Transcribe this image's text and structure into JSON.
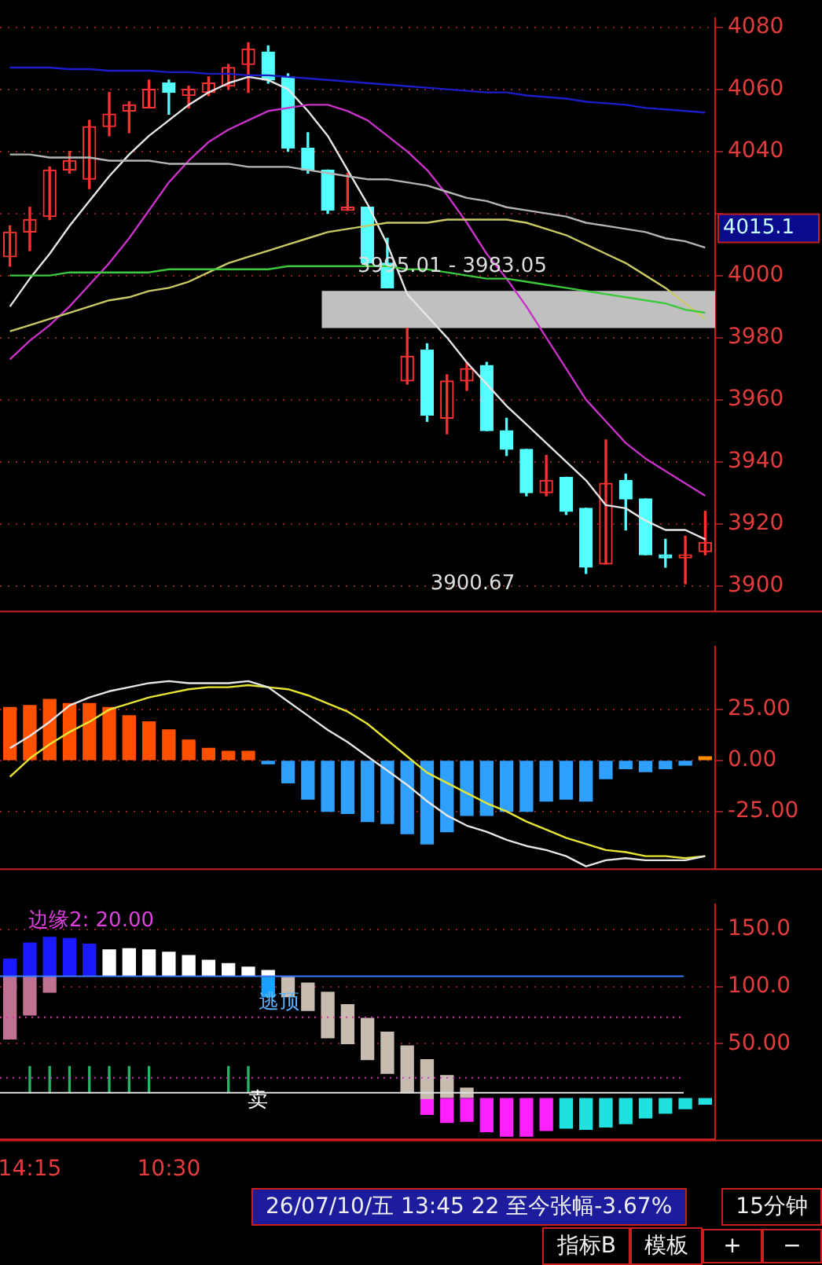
{
  "chart_data": [
    {
      "type": "candlestick",
      "categories": [
        null,
        null,
        null,
        null,
        null,
        null,
        null,
        null,
        null,
        null,
        null,
        null,
        null,
        null,
        null,
        null,
        null,
        null,
        null,
        null,
        null,
        null,
        null,
        null,
        null,
        null,
        null,
        null,
        null,
        null,
        null,
        null,
        null,
        null,
        null,
        null
      ],
      "ohlc": [
        [
          4006,
          4016,
          4003,
          4014
        ],
        [
          4014,
          4022,
          4008,
          4018
        ],
        [
          4019,
          4035,
          4018,
          4034
        ],
        [
          4034,
          4040,
          4033,
          4037
        ],
        [
          4031,
          4050,
          4028,
          4048
        ],
        [
          4048,
          4059,
          4045,
          4052
        ],
        [
          4053,
          4056,
          4046,
          4055
        ],
        [
          4054,
          4063,
          4054,
          4060
        ],
        [
          4062,
          4063,
          4052,
          4059
        ],
        [
          4058,
          4061,
          4054,
          4060
        ],
        [
          4059,
          4064,
          4058,
          4062
        ],
        [
          4061,
          4068,
          4060,
          4067
        ],
        [
          4068,
          4075,
          4059,
          4073
        ],
        [
          4072,
          4074,
          4062,
          4063
        ],
        [
          4064,
          4065,
          4040,
          4041
        ],
        [
          4041,
          4046,
          4033,
          4034
        ],
        [
          4034,
          4034,
          4020,
          4021
        ],
        [
          4021,
          4033,
          4021,
          4022
        ],
        [
          4022,
          4022,
          4003,
          4004
        ],
        [
          4004,
          4012,
          3996,
          3996
        ],
        [
          3966,
          3983,
          3965,
          3974
        ],
        [
          3976,
          3978,
          3953,
          3955
        ],
        [
          3954,
          3968,
          3949,
          3966
        ],
        [
          3966,
          3972,
          3963,
          3970
        ],
        [
          3971,
          3972,
          3950,
          3950
        ],
        [
          3950,
          3954,
          3942,
          3944
        ],
        [
          3944,
          3944,
          3929,
          3930
        ],
        [
          3930,
          3942,
          3929,
          3934
        ],
        [
          3935,
          3935,
          3923,
          3924
        ],
        [
          3925,
          3925,
          3904,
          3906
        ],
        [
          3907,
          3947,
          3907,
          3933
        ],
        [
          3934,
          3936,
          3918,
          3928
        ],
        [
          3928,
          3928,
          3910,
          3910
        ],
        [
          3910,
          3915,
          3906,
          3909
        ],
        [
          3909,
          3916,
          3900.67,
          3910
        ],
        [
          3911,
          3924,
          3910,
          3914
        ]
      ],
      "colors": [
        "#ff3232",
        "#ff3232",
        "#ff3232",
        "#ff3232",
        "#ff3232",
        "#ff3232",
        "#ff3232",
        "#ff3232",
        "#54ffff",
        "#ff3232",
        "#ff3232",
        "#ff3232",
        "#ff3232",
        "#54ffff",
        "#54ffff",
        "#54ffff",
        "#54ffff",
        "#ff3232",
        "#54ffff",
        "#54ffff",
        "#ff3232",
        "#54ffff",
        "#ff3232",
        "#ff3232",
        "#54ffff",
        "#54ffff",
        "#54ffff",
        "#ff3232",
        "#54ffff",
        "#54ffff",
        "#ff3232",
        "#54ffff",
        "#54ffff",
        "#54ffff",
        "#ff3232",
        "#ff3232"
      ],
      "series": [
        {
          "type": "line",
          "color": "#1c1cc8",
          "values": [
            4067,
            4067,
            4067,
            4066.5,
            4066.5,
            4066,
            4066,
            4066,
            4065.5,
            4065.5,
            4065,
            4065,
            4064.5,
            4064.5,
            4064,
            4063.5,
            4063,
            4062.5,
            4062,
            4061.5,
            4061,
            4060.5,
            4060,
            4059.5,
            4059,
            4059,
            4058,
            4057.5,
            4057,
            4056,
            4055.5,
            4055,
            4054,
            4053.5,
            4053,
            4052.5
          ]
        },
        {
          "type": "line",
          "color": "#b4b4b4",
          "values": [
            4039,
            4039,
            4038,
            4038,
            4038,
            4037,
            4037,
            4037,
            4036,
            4036,
            4036,
            4036,
            4035,
            4035,
            4035,
            4034,
            4033,
            4032,
            4031,
            4031,
            4030,
            4029,
            4027,
            4025,
            4024,
            4022,
            4021,
            4020,
            4019,
            4017,
            4016,
            4015,
            4014,
            4012,
            4011,
            4009
          ]
        },
        {
          "type": "line",
          "color": "#3cc83c",
          "values": [
            4000,
            4000,
            4000,
            4001,
            4001,
            4001,
            4001,
            4001,
            4002,
            4002,
            4002,
            4002,
            4002,
            4002,
            4003,
            4003,
            4003,
            4003,
            4003,
            4003,
            4002,
            4002,
            4001,
            4000,
            3999,
            3999,
            3998,
            3997,
            3996,
            3995,
            3994,
            3993,
            3992,
            3991,
            3989,
            3988
          ]
        },
        {
          "type": "line",
          "color": "#c8c864",
          "values": [
            3982,
            3984,
            3986,
            3988,
            3990,
            3992,
            3993,
            3995,
            3996,
            3998,
            4001,
            4004,
            4006,
            4008,
            4010,
            4012,
            4014,
            4015,
            4016,
            4017,
            4017,
            4017,
            4018,
            4018,
            4018,
            4018,
            4017,
            4015,
            4013,
            4010,
            4007,
            4004,
            4000,
            3996,
            3991,
            3986
          ]
        },
        {
          "type": "line",
          "color": "#c832c8",
          "values": [
            3973,
            3979,
            3984,
            3990,
            3997,
            4004,
            4012,
            4021,
            4030,
            4037,
            4043,
            4047,
            4050,
            4053,
            4054,
            4055,
            4055,
            4053,
            4050,
            4045,
            4040,
            4034,
            4026,
            4017,
            4007,
            3999,
            3990,
            3980,
            3970,
            3960,
            3953,
            3946,
            3941,
            3937,
            3933,
            3929
          ]
        },
        {
          "type": "line",
          "color": "#e6e6e6",
          "values": [
            3990,
            3999,
            4007,
            4016,
            4024,
            4032,
            4039,
            4045,
            4050,
            4055,
            4059,
            4062,
            4064,
            4063,
            4060,
            4053,
            4045,
            4034,
            4023,
            4010,
            3994,
            3987,
            3980,
            3972,
            3965,
            3958,
            3952,
            3946,
            3940,
            3934,
            3926,
            3925,
            3921,
            3918,
            3918,
            3915
          ]
        }
      ],
      "ylim": [
        3892,
        4083
      ],
      "yticks": [
        3900,
        3920,
        3940,
        3960,
        3980,
        4000,
        {
          "value": 4020,
          "label": null
        },
        4040,
        4060,
        4080
      ],
      "grid": "y",
      "tick_labels": "y",
      "legend": false,
      "bands": [
        {
          "axis": "y",
          "from": 3983.05,
          "to": 3995.01,
          "label": "3995.01 - 3983.05",
          "color": "#c0c0c0"
        }
      ],
      "annotations": [
        "4015.1",
        "3900.67"
      ]
    },
    {
      "type": "bar",
      "categories": [
        null,
        null,
        null,
        null,
        null,
        null,
        null,
        null,
        null,
        null,
        null,
        null,
        null,
        null,
        null,
        null,
        null,
        null,
        null,
        null,
        null,
        null,
        null,
        null,
        null,
        null,
        null,
        null,
        null,
        null,
        null,
        null,
        null,
        null,
        null,
        null
      ],
      "series": [
        {
          "type": "bar",
          "values": [
            26,
            27,
            30,
            28,
            28,
            26,
            22,
            19,
            15,
            10,
            6,
            4.5,
            4.5,
            -1.6,
            -11,
            -19,
            -25,
            -26,
            -30,
            -31,
            -36,
            -41,
            -35,
            -27,
            -27,
            -25,
            -25,
            -20,
            -19,
            -20,
            -9,
            -4,
            -5.5,
            -4,
            -2.3,
            1.8
          ],
          "colors": [
            "#ff5000",
            "#ff5000",
            "#ff5000",
            "#ff5000",
            "#ff5000",
            "#ff5000",
            "#ff5000",
            "#ff5000",
            "#ff5000",
            "#ff5000",
            "#ff5000",
            "#ff5000",
            "#ff5000",
            "#30a0ff",
            "#30a0ff",
            "#30a0ff",
            "#30a0ff",
            "#30a0ff",
            "#30a0ff",
            "#30a0ff",
            "#30a0ff",
            "#30a0ff",
            "#30a0ff",
            "#30a0ff",
            "#30a0ff",
            "#30a0ff",
            "#30a0ff",
            "#30a0ff",
            "#30a0ff",
            "#30a0ff",
            "#30a0ff",
            "#30a0ff",
            "#30a0ff",
            "#30a0ff",
            "#30a0ff",
            "#ff8c00"
          ]
        },
        {
          "type": "line",
          "color": "#e6e6e6",
          "values": [
            6,
            12,
            19,
            27,
            31,
            34,
            36,
            38,
            39,
            38,
            38,
            38,
            39,
            36,
            29,
            22,
            15,
            9,
            2,
            -5,
            -12,
            -20,
            -27,
            -32,
            -35,
            -39,
            -42,
            -44,
            -47,
            -52,
            -49,
            -48,
            -49,
            -49,
            -49,
            -47
          ]
        },
        {
          "type": "line",
          "color": "#e6e632",
          "values": [
            -8,
            1,
            8,
            14,
            19,
            25,
            28,
            31,
            33,
            35,
            36,
            36,
            37,
            36,
            35,
            32,
            28,
            24,
            18,
            10,
            2,
            -6,
            -11,
            -16,
            -21,
            -25,
            -30,
            -34,
            -38,
            -41,
            -44,
            -45,
            -47,
            -47,
            -48,
            -47
          ]
        }
      ],
      "ylim": [
        -53,
        56
      ],
      "yticks": [
        {
          "value": 25,
          "label": "25.00"
        },
        {
          "value": 0,
          "label": "0.00"
        },
        {
          "value": -25,
          "label": "-25.00"
        }
      ],
      "grid": "y",
      "tick_labels": "y",
      "legend": false
    },
    {
      "type": "bar",
      "categories": [
        null,
        "14:15",
        null,
        null,
        null,
        null,
        null,
        null,
        "10:30",
        null,
        null,
        null,
        null,
        null,
        null,
        null,
        null,
        null,
        null,
        null,
        null,
        null,
        null,
        null,
        null,
        null,
        null,
        null,
        null,
        null,
        null,
        null,
        null,
        null,
        null,
        null
      ],
      "series": [
        {
          "type": "bar",
          "color": "#1a1aff",
          "base": [
            109,
            109,
            109,
            109,
            109,
            null,
            null,
            null,
            null,
            null,
            null,
            null,
            null,
            null,
            null,
            null,
            null,
            null,
            null,
            null,
            null,
            null,
            null,
            null,
            null,
            null,
            null,
            null,
            null,
            null,
            null,
            null,
            null,
            null,
            null,
            null
          ],
          "values": [
            15,
            29,
            34,
            33,
            28,
            null,
            null,
            null,
            null,
            null,
            null,
            null,
            null,
            null,
            null,
            null,
            null,
            null,
            null,
            null,
            null,
            null,
            null,
            null,
            null,
            null,
            null,
            null,
            null,
            null,
            null,
            null,
            null,
            null,
            null,
            null
          ]
        },
        {
          "type": "bar",
          "color": "#c07090",
          "base": [
            54,
            75,
            95,
            null,
            null,
            null,
            null,
            null,
            null,
            null,
            null,
            null,
            null,
            null,
            null,
            null,
            null,
            null,
            null,
            null,
            null,
            null,
            null,
            null,
            null,
            null,
            null,
            null,
            null,
            null,
            null,
            null,
            null,
            null,
            null,
            null
          ],
          "values": [
            55,
            34,
            14,
            null,
            null,
            null,
            null,
            null,
            null,
            null,
            null,
            null,
            null,
            null,
            null,
            null,
            null,
            null,
            null,
            null,
            null,
            null,
            null,
            null,
            null,
            null,
            null,
            null,
            null,
            null,
            null,
            null,
            null,
            null,
            null,
            null
          ]
        },
        {
          "type": "bar",
          "color": "#ffffff",
          "base": [
            null,
            null,
            null,
            null,
            null,
            109,
            109,
            109,
            109,
            109,
            109,
            109,
            109,
            109,
            null,
            null,
            null,
            null,
            null,
            null,
            null,
            null,
            null,
            null,
            null,
            null,
            null,
            null,
            null,
            null,
            null,
            null,
            null,
            null,
            null,
            null
          ],
          "values": [
            null,
            null,
            null,
            null,
            null,
            23,
            24,
            23,
            21,
            18,
            14,
            11,
            8,
            5,
            null,
            null,
            null,
            null,
            null,
            null,
            null,
            null,
            null,
            null,
            null,
            null,
            null,
            null,
            null,
            null,
            null,
            null,
            null,
            null,
            null,
            null
          ]
        },
        {
          "type": "bar",
          "color": "#1aa0ff",
          "base": [
            null,
            null,
            null,
            null,
            null,
            null,
            null,
            null,
            null,
            null,
            null,
            null,
            null,
            91,
            null,
            null,
            null,
            null,
            null,
            null,
            null,
            null,
            null,
            null,
            null,
            null,
            null,
            null,
            null,
            null,
            null,
            null,
            null,
            null,
            null,
            null
          ],
          "values": [
            null,
            null,
            null,
            null,
            null,
            null,
            null,
            null,
            null,
            null,
            null,
            null,
            null,
            17,
            null,
            null,
            null,
            null,
            null,
            null,
            null,
            null,
            null,
            null,
            null,
            null,
            null,
            null,
            null,
            null,
            null,
            null,
            null,
            null,
            null,
            null
          ]
        },
        {
          "type": "bar",
          "color": "#c8bcb0",
          "base": [
            null,
            null,
            null,
            null,
            null,
            null,
            null,
            null,
            null,
            null,
            null,
            null,
            null,
            null,
            91,
            79,
            55,
            50,
            36,
            24,
            7,
            2,
            3,
            3,
            null,
            null,
            null,
            null,
            null,
            null,
            null,
            null,
            null,
            null,
            null,
            null
          ],
          "values": [
            null,
            null,
            null,
            null,
            null,
            null,
            null,
            null,
            null,
            null,
            null,
            null,
            null,
            null,
            17,
            24,
            40,
            34,
            36,
            36,
            41,
            34,
            19,
            8,
            null,
            null,
            null,
            null,
            null,
            null,
            null,
            null,
            null,
            null,
            null,
            null
          ]
        },
        {
          "type": "bar",
          "color": "#ff20ff",
          "base": [
            null,
            null,
            null,
            null,
            null,
            null,
            null,
            null,
            null,
            null,
            null,
            null,
            null,
            null,
            null,
            null,
            null,
            null,
            null,
            null,
            null,
            -12,
            -19,
            -18,
            -27,
            -31,
            -31,
            -26,
            null,
            null,
            null,
            null,
            null,
            null,
            null,
            null
          ],
          "values": [
            null,
            null,
            null,
            null,
            null,
            null,
            null,
            null,
            null,
            null,
            null,
            null,
            null,
            null,
            null,
            null,
            null,
            null,
            null,
            null,
            null,
            14,
            21,
            20,
            29,
            33,
            33,
            28,
            null,
            null,
            null,
            null,
            null,
            null,
            null,
            null
          ]
        },
        {
          "type": "bar",
          "color": "#20e0e0",
          "base": [
            null,
            null,
            null,
            null,
            null,
            null,
            null,
            null,
            null,
            null,
            null,
            null,
            null,
            null,
            null,
            null,
            null,
            null,
            null,
            null,
            null,
            null,
            null,
            null,
            null,
            null,
            null,
            null,
            -24,
            -25,
            -23,
            -20,
            -15,
            -11,
            -7,
            -3
          ],
          "values": [
            null,
            null,
            null,
            null,
            null,
            null,
            null,
            null,
            null,
            null,
            null,
            null,
            null,
            null,
            null,
            null,
            null,
            null,
            null,
            null,
            null,
            null,
            null,
            null,
            null,
            null,
            null,
            null,
            26,
            27,
            25,
            22,
            17,
            13,
            9,
            5
          ]
        },
        {
          "type": "bar",
          "color": "#28b464",
          "base": [
            null,
            7,
            7,
            7,
            7,
            7,
            7,
            7,
            null,
            null,
            null,
            7,
            7,
            null,
            null,
            null,
            null,
            null,
            null,
            null,
            null,
            null,
            null,
            null,
            null,
            null,
            null,
            null,
            null,
            null,
            null,
            null,
            null,
            null,
            null,
            null
          ],
          "values": [
            null,
            23,
            23,
            23,
            23,
            23,
            23,
            23,
            null,
            null,
            null,
            23,
            23,
            null,
            null,
            null,
            null,
            null,
            null,
            null,
            null,
            null,
            null,
            null,
            null,
            null,
            null,
            null,
            null,
            null,
            null,
            null,
            null,
            null,
            null,
            null
          ]
        }
      ],
      "ylim": [
        -34,
        172
      ],
      "yticks": [
        {
          "value": 50,
          "label": "50.00"
        },
        {
          "value": 100,
          "label": "100.0"
        },
        {
          "value": 150,
          "label": "150.0"
        }
      ],
      "grid": "y",
      "legend": false,
      "ref_lines": [
        {
          "axis": "y",
          "value": 109,
          "color": "#3a7bff"
        },
        {
          "axis": "y",
          "value": 7,
          "color": "#e0e0e0"
        },
        {
          "axis": "y",
          "value": 73,
          "color": "#d040a0",
          "line_style": "dotted"
        },
        {
          "axis": "y",
          "value": 20,
          "color": "#c040c0",
          "line_style": "dotted"
        }
      ],
      "annotations": [
        "边缘2: 20.00",
        {
          "text": "逃顶",
          "y": 86
        },
        {
          "text": "卖",
          "y": 0
        },
        "26/07/10/五 13:45 22 至今张幅-3.67%",
        "15分钟",
        "指标B",
        "模板",
        "+",
        "−"
      ]
    }
  ]
}
